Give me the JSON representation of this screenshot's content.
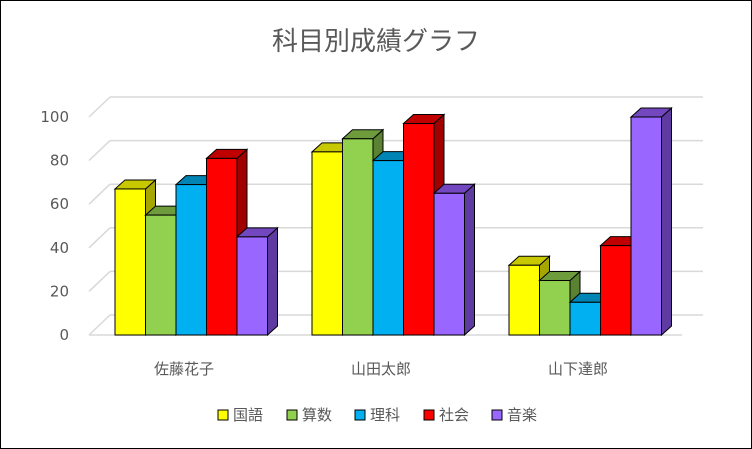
{
  "chart_data": {
    "type": "bar",
    "title": "科目別成績グラフ",
    "xlabel": "",
    "ylabel": "",
    "categories": [
      "佐藤花子",
      "山田太郎",
      "山下達郎"
    ],
    "series": [
      {
        "name": "国語",
        "values": [
          67,
          84,
          32
        ],
        "color": "#FFFF00",
        "top_color": "#C8C800",
        "side_color": "#A6A600"
      },
      {
        "name": "算数",
        "values": [
          55,
          90,
          25
        ],
        "color": "#92D050",
        "top_color": "#6E9C3C",
        "side_color": "#5B8232"
      },
      {
        "name": "理科",
        "values": [
          69,
          80,
          15
        ],
        "color": "#00B0F0",
        "top_color": "#0084B4",
        "side_color": "#006F96"
      },
      {
        "name": "社会",
        "values": [
          81,
          97,
          41
        ],
        "color": "#FF0000",
        "top_color": "#C00000",
        "side_color": "#A00000"
      },
      {
        "name": "音楽",
        "values": [
          45,
          65,
          100
        ],
        "color": "#9966FF",
        "top_color": "#7347BF",
        "side_color": "#5F3AA0"
      }
    ],
    "ylim": [
      0,
      100
    ],
    "yticks": [
      0,
      20,
      40,
      60,
      80,
      100
    ],
    "grid": true,
    "style": "3d-clustered-column",
    "legend_position": "bottom"
  }
}
